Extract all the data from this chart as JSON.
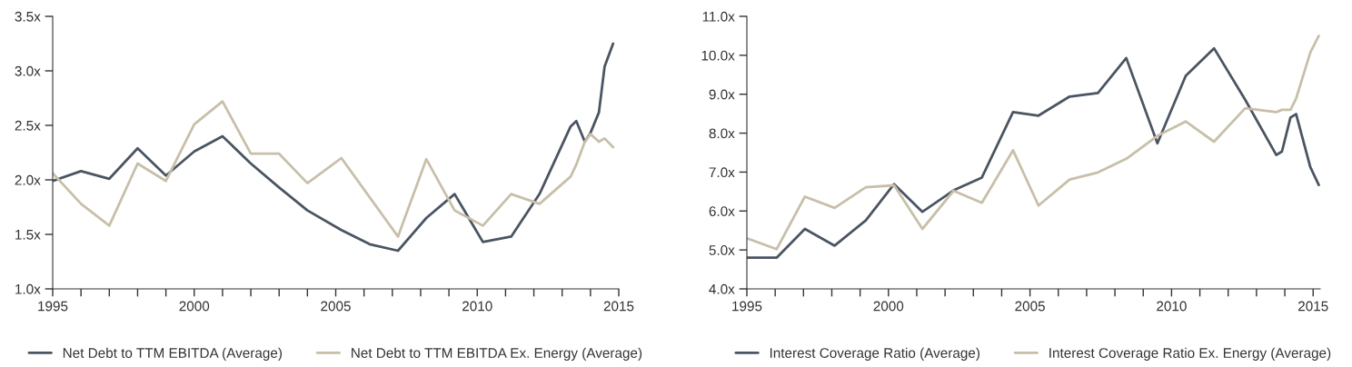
{
  "chart_data": [
    {
      "type": "line",
      "xlim": [
        1995,
        2015
      ],
      "ylim": [
        1.0,
        3.5
      ],
      "xticks": [
        1995,
        {
          "value": 1996,
          "label": null
        },
        {
          "value": 1997,
          "label": null
        },
        {
          "value": 1998,
          "label": null
        },
        {
          "value": 1999,
          "label": null
        },
        2000,
        {
          "value": 2001,
          "label": null
        },
        {
          "value": 2002,
          "label": null
        },
        {
          "value": 2003,
          "label": null
        },
        {
          "value": 2004,
          "label": null
        },
        2005,
        {
          "value": 2006,
          "label": null
        },
        {
          "value": 2007,
          "label": null
        },
        {
          "value": 2008,
          "label": null
        },
        {
          "value": 2009,
          "label": null
        },
        2010,
        {
          "value": 2011,
          "label": null
        },
        {
          "value": 2012,
          "label": null
        },
        {
          "value": 2013,
          "label": null
        },
        {
          "value": 2014,
          "label": null
        },
        2015
      ],
      "yticks": [
        {
          "value": 1.0,
          "label": "1.0x"
        },
        {
          "value": 1.5,
          "label": "1.5x"
        },
        {
          "value": 2.0,
          "label": "2.0x"
        },
        {
          "value": 2.5,
          "label": "2.5x"
        },
        {
          "value": 3.0,
          "label": "3.0x"
        },
        {
          "value": 3.5,
          "label": "3.5x"
        }
      ],
      "grid": false,
      "legend": "bottom",
      "line_style": "solid",
      "marker": "none",
      "series": [
        {
          "name": "Net Debt to TTM EBITDA (Average)",
          "color": "#4a5561",
          "x": [
            1995,
            1996,
            1997,
            1998,
            1999,
            2000,
            2001,
            2002,
            2003,
            2004,
            2005.2,
            2006.2,
            2007.2,
            2008.2,
            2009.2,
            2010.2,
            2011.2,
            2012.2,
            2013.3,
            2013.5,
            2013.8,
            2014.0,
            2014.3,
            2014.5,
            2014.8
          ],
          "values": [
            1.99,
            2.08,
            2.01,
            2.29,
            2.04,
            2.26,
            2.4,
            2.15,
            1.93,
            1.72,
            1.54,
            1.41,
            1.35,
            1.65,
            1.87,
            1.43,
            1.48,
            1.87,
            2.49,
            2.54,
            2.35,
            2.43,
            2.62,
            3.04,
            3.25
          ]
        },
        {
          "name": "Net Debt to TTM EBITDA Ex. Energy (Average)",
          "color": "#c8bfa9",
          "x": [
            1995,
            1996,
            1997,
            1998,
            1999,
            2000,
            2001,
            2002,
            2003,
            2004,
            2005.2,
            2007.2,
            2008.2,
            2009.2,
            2010.2,
            2011.2,
            2012.2,
            2013.3,
            2013.5,
            2013.8,
            2014.0,
            2014.3,
            2014.5,
            2014.8
          ],
          "values": [
            2.06,
            1.78,
            1.58,
            2.15,
            1.99,
            2.51,
            2.72,
            2.24,
            2.24,
            1.97,
            2.2,
            1.48,
            2.19,
            1.72,
            1.58,
            1.87,
            1.78,
            2.03,
            2.14,
            2.35,
            2.42,
            2.35,
            2.38,
            2.3
          ]
        }
      ]
    },
    {
      "type": "line",
      "xlim": [
        1995,
        2015.25
      ],
      "ylim": [
        4.0,
        11.0
      ],
      "xticks": [
        1995,
        {
          "value": 1996,
          "label": null
        },
        {
          "value": 1997,
          "label": null
        },
        {
          "value": 1998,
          "label": null
        },
        {
          "value": 1999,
          "label": null
        },
        2000,
        {
          "value": 2001,
          "label": null
        },
        {
          "value": 2002,
          "label": null
        },
        {
          "value": 2003,
          "label": null
        },
        {
          "value": 2004,
          "label": null
        },
        2005,
        {
          "value": 2006,
          "label": null
        },
        {
          "value": 2007,
          "label": null
        },
        {
          "value": 2008,
          "label": null
        },
        {
          "value": 2009,
          "label": null
        },
        2010,
        {
          "value": 2011,
          "label": null
        },
        {
          "value": 2012,
          "label": null
        },
        {
          "value": 2013,
          "label": null
        },
        {
          "value": 2014,
          "label": null
        },
        2015
      ],
      "yticks": [
        {
          "value": 4.0,
          "label": "4.0x"
        },
        {
          "value": 5.0,
          "label": "5.0x"
        },
        {
          "value": 6.0,
          "label": "6.0x"
        },
        {
          "value": 7.0,
          "label": "7.0x"
        },
        {
          "value": 8.0,
          "label": "8.0x"
        },
        {
          "value": 9.0,
          "label": "9.0x"
        },
        {
          "value": 10.0,
          "label": "10.0x"
        },
        {
          "value": 11.0,
          "label": "11.0x"
        }
      ],
      "grid": false,
      "legend": "bottom",
      "line_style": "solid",
      "marker": "none",
      "series": [
        {
          "name": "Interest Coverage Ratio (Average)",
          "color": "#4a5561",
          "x": [
            1995,
            1996.05,
            1997.05,
            1998.1,
            1999.2,
            2000.2,
            2001.2,
            2002.3,
            2003.3,
            2004.4,
            2005.3,
            2006.4,
            2007.4,
            2008.4,
            2009.5,
            2010.5,
            2011.5,
            2012.6,
            2013.7,
            2013.9,
            2014.2,
            2014.4,
            2014.9,
            2015.2
          ],
          "values": [
            4.8,
            4.8,
            5.54,
            5.11,
            5.76,
            6.69,
            5.98,
            6.53,
            6.86,
            8.54,
            8.45,
            8.94,
            9.03,
            9.93,
            7.74,
            9.47,
            10.18,
            8.86,
            7.44,
            7.53,
            8.4,
            8.49,
            7.13,
            6.67
          ]
        },
        {
          "name": "Interest Coverage Ratio Ex. Energy (Average)",
          "color": "#c8bfa9",
          "x": [
            1995,
            1996.05,
            1997.05,
            1998.1,
            1999.2,
            2000.2,
            2001.2,
            2002.3,
            2003.3,
            2004.4,
            2005.3,
            2006.4,
            2007.4,
            2008.4,
            2009.5,
            2010.5,
            2011.5,
            2012.6,
            2013.7,
            2013.9,
            2014.2,
            2014.4,
            2014.9,
            2015.2
          ],
          "values": [
            5.3,
            5.02,
            6.37,
            6.08,
            6.61,
            6.66,
            5.54,
            6.52,
            6.21,
            7.56,
            6.14,
            6.81,
            6.99,
            7.34,
            7.93,
            8.3,
            7.78,
            8.64,
            8.54,
            8.6,
            8.6,
            8.89,
            10.07,
            10.5
          ]
        }
      ]
    }
  ]
}
